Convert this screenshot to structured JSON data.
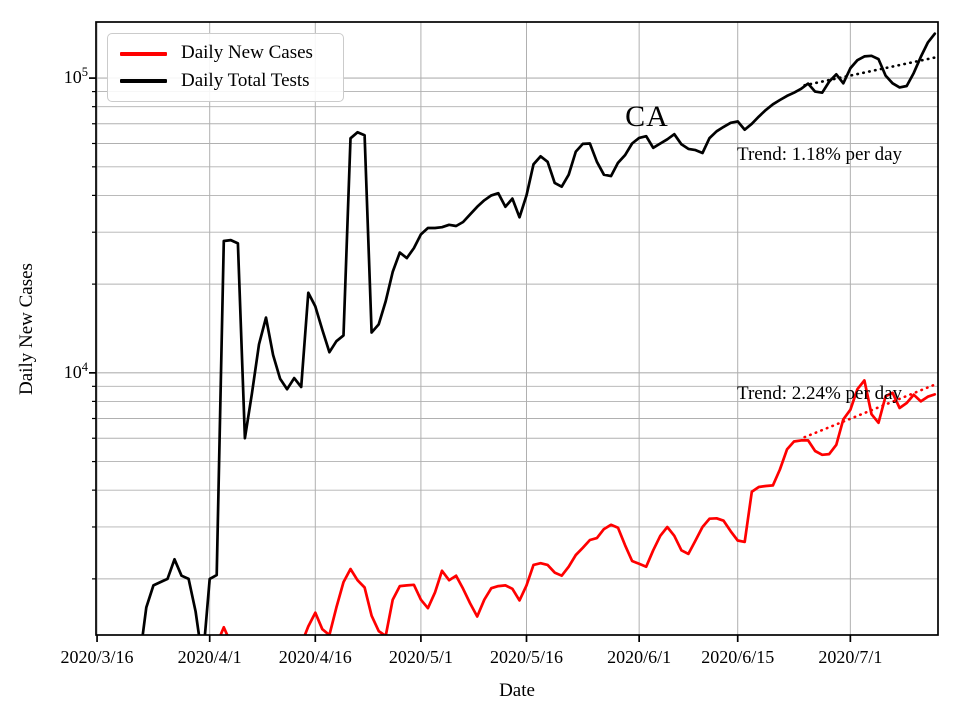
{
  "figure": {
    "legend": [
      {
        "label": "Daily New Cases",
        "color": "#ff0000"
      },
      {
        "label": "Daily Total Tests",
        "color": "#000000"
      }
    ],
    "annotations": {
      "state": "CA",
      "trend_tests": "Trend: 1.18% per day",
      "trend_cases": "Trend: 2.24% per day"
    },
    "xlabel": "Date",
    "ylabel": "Daily New Cases"
  },
  "chart_data": {
    "type": "line",
    "title": "",
    "xlabel": "Date",
    "ylabel": "Daily New Cases",
    "grid": "both",
    "grid_color": "#b0b0b0",
    "legend_position": "upper-left",
    "x_axis": {
      "start_date": "2020/3/16",
      "end_date": "2020/7/13",
      "tick_days": [
        0,
        16,
        31,
        46,
        61,
        77,
        91,
        107
      ],
      "tick_labels": [
        "2020/3/16",
        "2020/4/1",
        "2020/4/16",
        "2020/5/1",
        "2020/5/16",
        "2020/6/1",
        "2020/6/15",
        "2020/7/1"
      ]
    },
    "y_axis": {
      "scale": "log",
      "ylim": [
        1290,
        155000
      ],
      "major_ticks": [
        {
          "value": 10000,
          "base": "10",
          "exp": "4"
        },
        {
          "value": 100000,
          "base": "10",
          "exp": "5"
        }
      ],
      "minor_tick_values": [
        2000,
        3000,
        4000,
        5000,
        6000,
        7000,
        8000,
        9000,
        20000,
        30000,
        40000,
        50000,
        60000,
        70000,
        80000,
        90000
      ]
    },
    "series": [
      {
        "name": "Daily Total Tests",
        "color": "#000000",
        "style": "solid",
        "start_day": 6,
        "start_date": "2020/3/22",
        "values": [
          1050,
          1600,
          1900,
          1950,
          2000,
          2330,
          2050,
          2000,
          1550,
          1050,
          2000,
          2060,
          28000,
          28200,
          27500,
          6000,
          8500,
          12500,
          15400,
          11500,
          9550,
          8800,
          9600,
          8950,
          18700,
          16800,
          14000,
          11750,
          12800,
          13400,
          62500,
          65500,
          64000,
          13700,
          14600,
          17500,
          22000,
          25600,
          24500,
          26500,
          29500,
          31000,
          31000,
          31200,
          31800,
          31500,
          32500,
          34500,
          36600,
          38500,
          40000,
          40700,
          36600,
          39000,
          33700,
          40000,
          51000,
          54300,
          52000,
          44100,
          42800,
          47000,
          56300,
          59800,
          60000,
          52000,
          47000,
          46500,
          51600,
          54800,
          60000,
          62700,
          63500,
          58000,
          60000,
          62000,
          64500,
          59600,
          57500,
          57000,
          55700,
          62600,
          66000,
          68300,
          70500,
          71300,
          66800,
          70000,
          74000,
          78000,
          81500,
          84300,
          87000,
          89200,
          92000,
          95800,
          90000,
          89200,
          97300,
          103000,
          96000,
          108000,
          115000,
          118500,
          119000,
          116000,
          102000,
          96000,
          93000,
          94000,
          104000,
          118000,
          132000,
          141500
        ]
      },
      {
        "name": "Daily New Cases",
        "color": "#ff0000",
        "style": "solid",
        "start_day": 16,
        "start_date": "2020/4/1",
        "values": [
          1000,
          1200,
          1370,
          1210,
          1000,
          950,
          900,
          950,
          1000,
          1050,
          1000,
          1100,
          1150,
          1200,
          1380,
          1535,
          1350,
          1290,
          1600,
          1950,
          2160,
          1980,
          1870,
          1500,
          1330,
          1280,
          1700,
          1890,
          1900,
          1910,
          1700,
          1590,
          1800,
          2130,
          1980,
          2050,
          1850,
          1650,
          1490,
          1700,
          1860,
          1890,
          1900,
          1850,
          1690,
          1900,
          2230,
          2260,
          2230,
          2100,
          2050,
          2200,
          2410,
          2550,
          2710,
          2750,
          2950,
          3050,
          2980,
          2600,
          2300,
          2250,
          2200,
          2500,
          2800,
          3000,
          2800,
          2500,
          2430,
          2700,
          3000,
          3200,
          3210,
          3150,
          2900,
          2700,
          2670,
          3950,
          4100,
          4130,
          4150,
          4700,
          5500,
          5850,
          5900,
          5900,
          5430,
          5270,
          5300,
          5700,
          6950,
          7500,
          8800,
          9430,
          7240,
          6770,
          8330,
          8560,
          7600,
          7900,
          8430,
          8000,
          8300,
          8450
        ]
      },
      {
        "name": "Tests trend (1.18% per day)",
        "color": "#000000",
        "style": "dotted",
        "days": [
          100.5,
          119.3
        ],
        "values": [
          94500,
          117800
        ]
      },
      {
        "name": "Cases trend (2.24% per day)",
        "color": "#ff0000",
        "style": "dotted",
        "days": [
          100.5,
          119.3
        ],
        "values": [
          6050,
          9180
        ]
      }
    ]
  }
}
